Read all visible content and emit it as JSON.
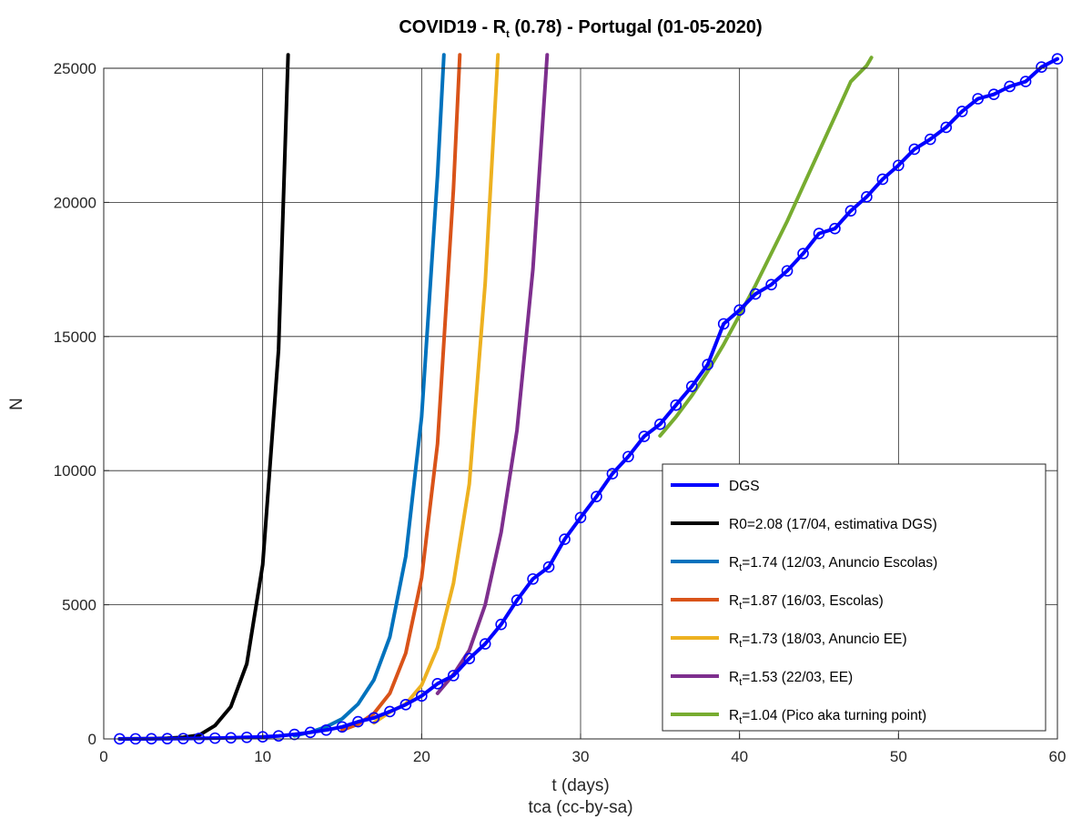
{
  "chart_data": {
    "type": "line",
    "title": {
      "pre": "COVID19 - R",
      "sub": "t",
      "post": " (0.78) - Portugal (01-05-2020)"
    },
    "xlabel": "t (days)",
    "credit": "tca (cc-by-sa)",
    "ylabel": "N",
    "xlim": [
      0,
      60
    ],
    "ylim": [
      0,
      25000
    ],
    "xticks": [
      0,
      10,
      20,
      30,
      40,
      50,
      60
    ],
    "yticks": [
      0,
      5000,
      10000,
      15000,
      20000,
      25000
    ],
    "grid": true,
    "legend_position": "bottom-right",
    "series": [
      {
        "name": "DGS",
        "color": "#0000ff",
        "markers": true,
        "x": [
          1,
          2,
          3,
          4,
          5,
          6,
          7,
          8,
          9,
          10,
          11,
          12,
          13,
          14,
          15,
          16,
          17,
          18,
          19,
          20,
          21,
          22,
          23,
          24,
          25,
          26,
          27,
          28,
          29,
          30,
          31,
          32,
          33,
          34,
          35,
          36,
          37,
          38,
          39,
          40,
          41,
          42,
          43,
          44,
          45,
          46,
          47,
          48,
          49,
          50,
          51,
          52,
          53,
          54,
          55,
          56,
          57,
          58,
          59,
          60
        ],
        "y": [
          2,
          4,
          6,
          9,
          13,
          21,
          30,
          41,
          59,
          78,
          112,
          169,
          245,
          331,
          448,
          642,
          785,
          1020,
          1280,
          1600,
          2060,
          2362,
          2995,
          3544,
          4268,
          5170,
          5962,
          6408,
          7443,
          8251,
          9034,
          9886,
          10524,
          11278,
          11730,
          12442,
          13141,
          13956,
          15472,
          15987,
          16585,
          16934,
          17448,
          18091,
          18841,
          19022,
          19685,
          20206,
          20863,
          21379,
          21982,
          22353,
          22797,
          23392,
          23864,
          24027,
          24322,
          24505,
          25045,
          25351
        ]
      },
      {
        "name": {
          "pre": "R0=2.08 (17/04, estimativa DGS)",
          "sub": "",
          "post": ""
        },
        "color": "#000000",
        "x": [
          1,
          2,
          3,
          4,
          5,
          6,
          7,
          8,
          9,
          10,
          11,
          11.6
        ],
        "y": [
          1,
          4,
          10,
          25,
          60,
          140,
          500,
          1200,
          2800,
          6500,
          14500,
          25500
        ]
      },
      {
        "name": {
          "pre": "R",
          "sub": "t",
          "post": "=1.74 (12/03, Anuncio Escolas)"
        },
        "color": "#0072bd",
        "x": [
          12,
          13,
          14,
          15,
          16,
          17,
          18,
          19,
          20,
          21,
          21.4
        ],
        "y": [
          120,
          250,
          450,
          750,
          1300,
          2200,
          3800,
          6800,
          12000,
          21000,
          25500
        ]
      },
      {
        "name": {
          "pre": "R",
          "sub": "t",
          "post": "=1.87 (16/03, Escolas)"
        },
        "color": "#d95319",
        "x": [
          15,
          16,
          17,
          18,
          19,
          20,
          21,
          22,
          22.4
        ],
        "y": [
          330,
          550,
          950,
          1700,
          3200,
          6000,
          11000,
          20500,
          25500
        ]
      },
      {
        "name": {
          "pre": "R",
          "sub": "t",
          "post": "=1.73 (18/03, Anuncio EE)"
        },
        "color": "#edb120",
        "x": [
          17,
          18,
          19,
          20,
          21,
          22,
          23,
          24,
          24.8
        ],
        "y": [
          600,
          1000,
          1300,
          2000,
          3400,
          5800,
          9500,
          17000,
          25500
        ]
      },
      {
        "name": {
          "pre": "R",
          "sub": "t",
          "post": "=1.53 (22/03, EE)"
        },
        "color": "#7e2f8e",
        "x": [
          21,
          22,
          23,
          24,
          25,
          26,
          27,
          27.9
        ],
        "y": [
          1700,
          2400,
          3300,
          5000,
          7700,
          11500,
          17500,
          25500
        ]
      },
      {
        "name": {
          "pre": "R",
          "sub": "t",
          "post": "=1.04 (Pico aka turning point)"
        },
        "color": "#77ac30",
        "x": [
          35,
          36,
          37,
          38,
          39,
          40,
          41,
          42,
          43,
          44,
          45,
          46,
          47,
          48,
          48.3
        ],
        "y": [
          11300,
          12000,
          12800,
          13700,
          14700,
          15800,
          16900,
          18100,
          19300,
          20600,
          21900,
          23200,
          24500,
          25100,
          25400
        ]
      }
    ]
  }
}
